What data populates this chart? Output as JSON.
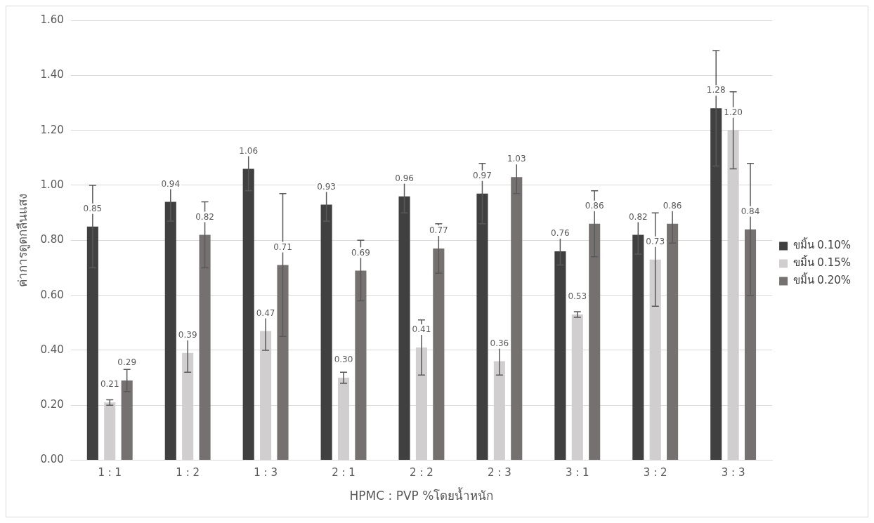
{
  "chart_data": {
    "type": "bar",
    "xlabel": "HPMC : PVP %โดยน้ำหนัก",
    "ylabel": "ค่าการดูดกลืนแสง",
    "categories": [
      "1 : 1",
      "1 : 2",
      "1 : 3",
      "2 : 1",
      "2 : 2",
      "2 : 3",
      "3 : 1",
      "3 : 2",
      "3 : 3"
    ],
    "series": [
      {
        "name": "ขมิ้น 0.10%",
        "color": "#404040",
        "values": [
          0.85,
          0.94,
          1.06,
          0.93,
          0.96,
          0.97,
          0.76,
          0.82,
          1.28
        ],
        "errors": [
          0.15,
          0.07,
          0.08,
          0.06,
          0.06,
          0.11,
          0.05,
          0.07,
          0.21
        ],
        "value_labels": [
          "0.85",
          "0.94",
          "1.06",
          "0.93",
          "0.96",
          "0.97",
          "0.76",
          "0.82",
          "1.28"
        ]
      },
      {
        "name": "ขมิ้น 0.15%",
        "color": "#d0cece",
        "values": [
          0.21,
          0.39,
          0.47,
          0.3,
          0.41,
          0.36,
          0.53,
          0.73,
          1.2
        ],
        "errors": [
          0.01,
          0.07,
          0.07,
          0.02,
          0.1,
          0.05,
          0.01,
          0.17,
          0.14
        ],
        "value_labels": [
          "0.21",
          "0.39",
          "0.47",
          "0.30",
          "0.41",
          "0.36",
          "0.53",
          "0.73",
          "1.20"
        ]
      },
      {
        "name": "ขมิ้น 0.20%",
        "color": "#767171",
        "values": [
          0.29,
          0.82,
          0.71,
          0.69,
          0.77,
          1.03,
          0.86,
          0.86,
          0.84
        ],
        "errors": [
          0.04,
          0.12,
          0.26,
          0.11,
          0.09,
          0.06,
          0.12,
          0.07,
          0.24
        ],
        "value_labels": [
          "0.29",
          "0.82",
          "0.71",
          "0.69",
          "0.77",
          "1.03",
          "0.86",
          "0.86",
          "0.84"
        ]
      }
    ],
    "ylim": [
      0,
      1.6
    ],
    "yticks": [
      {
        "value": 0,
        "label": "0.00"
      },
      {
        "value": 0.2,
        "label": "0.20"
      },
      {
        "value": 0.4,
        "label": "0.40"
      },
      {
        "value": 0.6,
        "label": "0.60"
      },
      {
        "value": 0.8,
        "label": "0.80"
      },
      {
        "value": 1,
        "label": "1.00"
      },
      {
        "value": 1.2,
        "label": "1.20"
      },
      {
        "value": 1.4,
        "label": "1.40"
      },
      {
        "value": 1.6,
        "label": "1.60"
      }
    ],
    "grid": "y",
    "legend": "right"
  }
}
